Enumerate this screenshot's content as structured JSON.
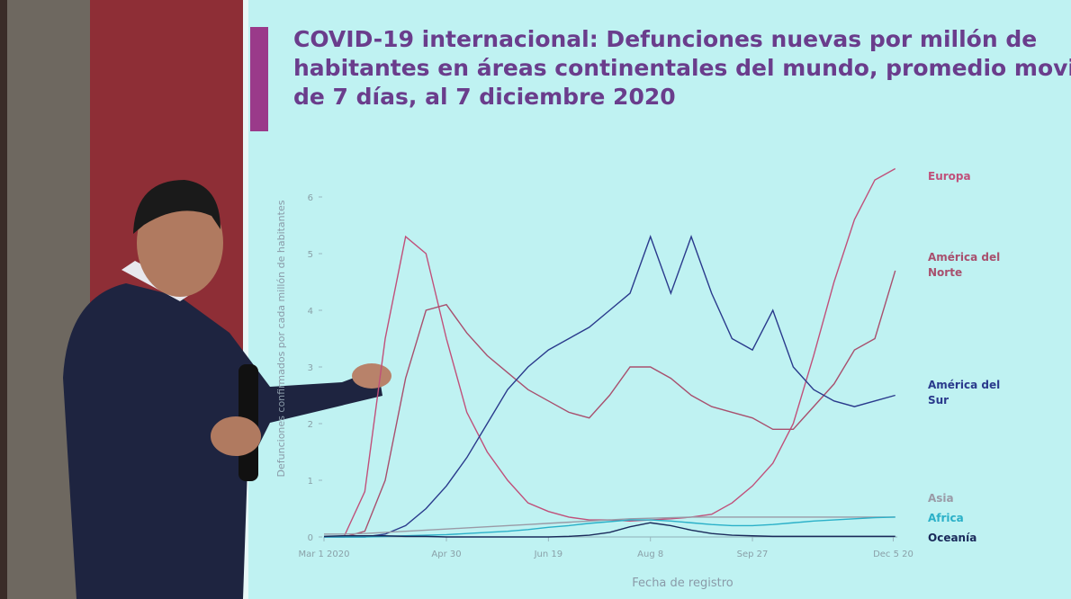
{
  "chart_data": {
    "type": "line",
    "title": "COVID-19 internacional: Defunciones nuevas por millón de habitantes en áreas continentales del mundo, promedio movil de 7 días, al 7 diciembre 2020",
    "x_label": "Fecha de registro",
    "y_label": "Defunciones confirmados por cada millón de habitantes",
    "x": [
      0,
      10,
      20,
      30,
      40,
      50,
      60,
      70,
      80,
      90,
      100,
      110,
      120,
      130,
      140,
      150,
      160,
      170,
      180,
      190,
      200,
      210,
      220,
      230,
      240,
      250,
      260,
      270,
      280
    ],
    "xlim": [
      0,
      281
    ],
    "xticks": [
      {
        "value": 0,
        "label": "Mar 1 2020"
      },
      {
        "value": 60,
        "label": "Apr 30"
      },
      {
        "value": 110,
        "label": "Jun 19"
      },
      {
        "value": 160,
        "label": "Aug 8"
      },
      {
        "value": 210,
        "label": "Sep 27"
      },
      {
        "value": 279,
        "label": "Dec 5 20"
      }
    ],
    "ylim": [
      0,
      7
    ],
    "yticks": [
      0,
      1,
      2,
      3,
      4,
      5,
      6
    ],
    "series": [
      {
        "name": "Europa",
        "color": "#c0507a",
        "values": [
          0,
          0.02,
          0.8,
          3.5,
          5.3,
          5.0,
          3.5,
          2.2,
          1.5,
          1.0,
          0.6,
          0.45,
          0.35,
          0.3,
          0.3,
          0.28,
          0.3,
          0.32,
          0.35,
          0.4,
          0.6,
          0.9,
          1.3,
          2.0,
          3.2,
          4.5,
          5.6,
          6.3,
          6.5
        ]
      },
      {
        "name": "América del Norte",
        "color": "#a8506e",
        "values": [
          0,
          0,
          0.1,
          1.0,
          2.8,
          4.0,
          4.1,
          3.6,
          3.2,
          2.9,
          2.6,
          2.4,
          2.2,
          2.1,
          2.5,
          3.0,
          3.0,
          2.8,
          2.5,
          2.3,
          2.2,
          2.1,
          1.9,
          1.9,
          2.3,
          2.7,
          3.3,
          3.5,
          4.7
        ]
      },
      {
        "name": "América del Sur",
        "color": "#2a3a8c",
        "values": [
          0,
          0,
          0,
          0.05,
          0.2,
          0.5,
          0.9,
          1.4,
          2.0,
          2.6,
          3.0,
          3.3,
          3.5,
          3.7,
          4.0,
          4.3,
          5.3,
          4.3,
          5.3,
          4.3,
          3.5,
          3.3,
          4.0,
          3.0,
          2.6,
          2.4,
          2.3,
          2.4,
          2.5
        ]
      },
      {
        "name": "Asia",
        "color": "#9a9aa6",
        "values": [
          0.05,
          0.05,
          0.06,
          0.08,
          0.1,
          0.12,
          0.14,
          0.16,
          0.18,
          0.2,
          0.22,
          0.24,
          0.26,
          0.28,
          0.3,
          0.32,
          0.33,
          0.34,
          0.35,
          0.35,
          0.35,
          0.35,
          0.35,
          0.35,
          0.35,
          0.35,
          0.35,
          0.35,
          0.35
        ]
      },
      {
        "name": "Africa",
        "color": "#2ab0c8",
        "values": [
          0,
          0,
          0,
          0.01,
          0.02,
          0.03,
          0.04,
          0.06,
          0.08,
          0.1,
          0.13,
          0.17,
          0.2,
          0.24,
          0.27,
          0.3,
          0.3,
          0.28,
          0.25,
          0.22,
          0.2,
          0.2,
          0.22,
          0.25,
          0.28,
          0.3,
          0.32,
          0.34,
          0.35
        ]
      },
      {
        "name": "Oceanía",
        "color": "#1a2a5a",
        "values": [
          0.01,
          0.02,
          0.02,
          0.02,
          0.01,
          0.01,
          0,
          0,
          0,
          0,
          0,
          0,
          0.01,
          0.03,
          0.08,
          0.18,
          0.25,
          0.2,
          0.12,
          0.06,
          0.03,
          0.02,
          0.01,
          0.01,
          0.01,
          0.01,
          0.01,
          0.01,
          0.01
        ]
      }
    ]
  }
}
